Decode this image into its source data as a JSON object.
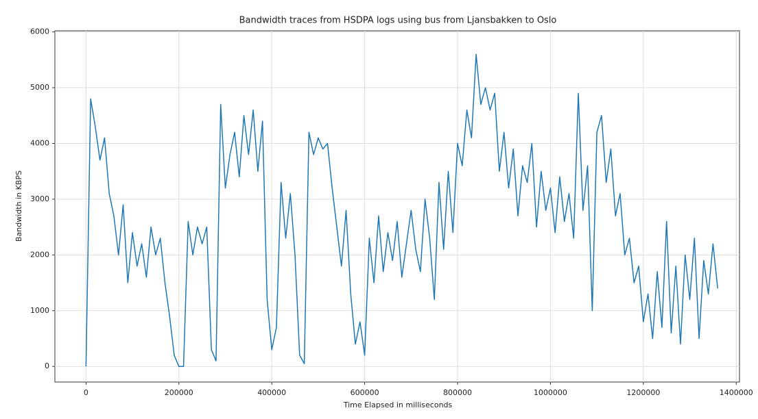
{
  "chart_data": {
    "type": "line",
    "title": "Bandwidth traces from HSDPA logs using bus from Ljansbakken to Oslo",
    "x_label": "Time Elapsed in milliseconds",
    "y_label": "Bandwidth in KBPS",
    "xlim": [
      -67000,
      1407000
    ],
    "ylim": [
      -280,
      6020
    ],
    "xticks": [
      0,
      200000,
      400000,
      600000,
      800000,
      1000000,
      1200000,
      1400000
    ],
    "yticks": [
      0,
      1000,
      2000,
      3000,
      4000,
      5000,
      6000
    ],
    "grid": true,
    "series": [
      {
        "color": "#1f77b4",
        "x": [
          0,
          10000,
          20000,
          30000,
          40000,
          50000,
          60000,
          70000,
          80000,
          90000,
          100000,
          110000,
          120000,
          130000,
          140000,
          150000,
          160000,
          170000,
          180000,
          190000,
          200000,
          210000,
          220000,
          230000,
          240000,
          250000,
          260000,
          270000,
          280000,
          290000,
          300000,
          310000,
          320000,
          330000,
          340000,
          350000,
          360000,
          370000,
          380000,
          390000,
          400000,
          410000,
          420000,
          430000,
          440000,
          450000,
          460000,
          470000,
          480000,
          490000,
          500000,
          510000,
          520000,
          530000,
          540000,
          550000,
          560000,
          570000,
          580000,
          590000,
          600000,
          610000,
          620000,
          630000,
          640000,
          650000,
          660000,
          670000,
          680000,
          690000,
          700000,
          710000,
          720000,
          730000,
          740000,
          750000,
          760000,
          770000,
          780000,
          790000,
          800000,
          810000,
          820000,
          830000,
          840000,
          850000,
          860000,
          870000,
          880000,
          890000,
          900000,
          910000,
          920000,
          930000,
          940000,
          950000,
          960000,
          970000,
          980000,
          990000,
          1000000,
          1010000,
          1020000,
          1030000,
          1040000,
          1050000,
          1060000,
          1070000,
          1080000,
          1090000,
          1100000,
          1110000,
          1120000,
          1130000,
          1140000,
          1150000,
          1160000,
          1170000,
          1180000,
          1190000,
          1200000,
          1210000,
          1220000,
          1230000,
          1240000,
          1250000,
          1260000,
          1270000,
          1280000,
          1290000,
          1300000,
          1310000,
          1320000,
          1330000,
          1340000,
          1350000,
          1360000
        ],
        "values": [
          0,
          4800,
          4300,
          3700,
          4100,
          3100,
          2700,
          2000,
          2900,
          1500,
          2400,
          1800,
          2200,
          1600,
          2500,
          2000,
          2300,
          1500,
          900,
          200,
          0,
          0,
          2600,
          2000,
          2500,
          2200,
          2500,
          300,
          100,
          4700,
          3200,
          3800,
          4200,
          3400,
          4500,
          3800,
          4600,
          3500,
          4400,
          1200,
          300,
          700,
          3300,
          2300,
          3100,
          2000,
          200,
          50,
          4200,
          3800,
          4100,
          3900,
          4000,
          3200,
          2500,
          1800,
          2800,
          1300,
          400,
          800,
          200,
          2300,
          1500,
          2700,
          1700,
          2400,
          1900,
          2600,
          1600,
          2200,
          2800,
          2100,
          1700,
          3000,
          2300,
          1200,
          3300,
          2100,
          3500,
          2400,
          4000,
          3600,
          4600,
          4100,
          5600,
          4700,
          5000,
          4600,
          4900,
          3500,
          4200,
          3200,
          3900,
          2700,
          3600,
          3300,
          4000,
          2500,
          3500,
          2800,
          3200,
          2400,
          3400,
          2600,
          3100,
          2300,
          4900,
          2800,
          3600,
          1000,
          4200,
          4500,
          3300,
          3900,
          2700,
          3100,
          2000,
          2300,
          1500,
          1800,
          800,
          1300,
          500,
          1700,
          700,
          2600,
          600,
          1800,
          400,
          2000,
          1200,
          2300,
          500,
          1900,
          1300,
          2200,
          1400
        ]
      }
    ]
  }
}
